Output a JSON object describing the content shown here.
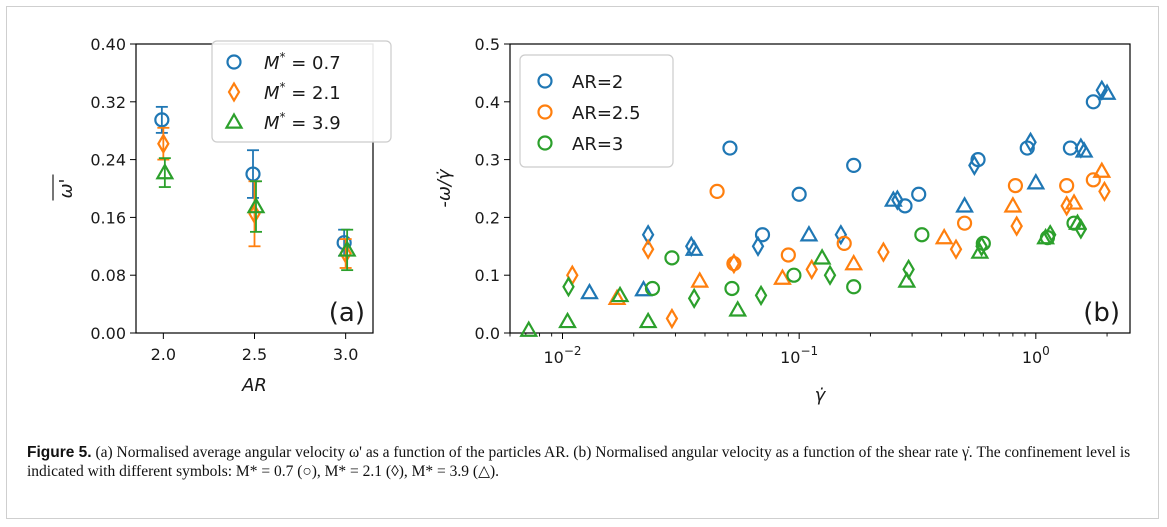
{
  "chart_data": [
    {
      "type": "scatter",
      "panel": "(a)",
      "xlabel": "AR",
      "ylabel": "ω'",
      "xlim": [
        1.85,
        3.15
      ],
      "ylim": [
        0.0,
        0.4
      ],
      "xticks": [
        "2.0",
        "2.5",
        "3.0"
      ],
      "yticks": [
        "0.00",
        "0.08",
        "0.16",
        "0.24",
        "0.32",
        "0.40"
      ],
      "legend_position": "top-right",
      "series": [
        {
          "name": "M* = 0.7",
          "marker": "circle",
          "color": "#1f77b4",
          "x": [
            2.0,
            2.5,
            3.0
          ],
          "y": [
            0.295,
            0.22,
            0.125
          ],
          "err": [
            0.018,
            0.033,
            0.018
          ]
        },
        {
          "name": "M* = 2.1",
          "marker": "diamond",
          "color": "#ff7f0e",
          "x": [
            2.0,
            2.5,
            3.0
          ],
          "y": [
            0.262,
            0.165,
            0.11
          ],
          "err": [
            0.022,
            0.045,
            0.02
          ]
        },
        {
          "name": "M* = 3.9",
          "marker": "triangle",
          "color": "#2ca02c",
          "x": [
            2.0,
            2.5,
            3.0
          ],
          "y": [
            0.222,
            0.175,
            0.115
          ],
          "err": [
            0.02,
            0.035,
            0.028
          ]
        }
      ]
    },
    {
      "type": "scatter",
      "panel": "(b)",
      "xlabel": "γ̇",
      "ylabel": "-ω/γ̇",
      "xscale": "log",
      "xlim": [
        0.006,
        2.5
      ],
      "ylim": [
        0.0,
        0.5
      ],
      "xticks": [
        0.01,
        0.1,
        1
      ],
      "yticks": [
        "0.0",
        "0.1",
        "0.2",
        "0.3",
        "0.4",
        "0.5"
      ],
      "legend_position": "top-left",
      "legend": [
        {
          "name": "AR=2",
          "color": "#1f77b4"
        },
        {
          "name": "AR=2.5",
          "color": "#ff7f0e"
        },
        {
          "name": "AR=3",
          "color": "#2ca02c"
        }
      ],
      "series": [
        {
          "ar": "2",
          "marker": "circle",
          "color": "#1f77b4",
          "points": [
            [
              0.051,
              0.32
            ],
            [
              0.07,
              0.17
            ],
            [
              0.1,
              0.24
            ],
            [
              0.17,
              0.29
            ],
            [
              0.28,
              0.22
            ],
            [
              0.32,
              0.24
            ],
            [
              0.57,
              0.3
            ],
            [
              0.92,
              0.32
            ],
            [
              1.4,
              0.32
            ],
            [
              1.75,
              0.4
            ]
          ]
        },
        {
          "ar": "2",
          "marker": "diamond",
          "color": "#1f77b4",
          "points": [
            [
              0.023,
              0.17
            ],
            [
              0.035,
              0.15
            ],
            [
              0.067,
              0.15
            ],
            [
              0.15,
              0.17
            ],
            [
              0.26,
              0.23
            ],
            [
              0.55,
              0.29
            ],
            [
              0.95,
              0.33
            ],
            [
              1.55,
              0.32
            ],
            [
              1.9,
              0.42
            ]
          ]
        },
        {
          "ar": "2",
          "marker": "triangle",
          "color": "#1f77b4",
          "points": [
            [
              0.013,
              0.07
            ],
            [
              0.022,
              0.075
            ],
            [
              0.036,
              0.145
            ],
            [
              0.11,
              0.17
            ],
            [
              0.25,
              0.23
            ],
            [
              0.5,
              0.22
            ],
            [
              1.0,
              0.26
            ],
            [
              1.6,
              0.315
            ],
            [
              2.0,
              0.415
            ]
          ]
        },
        {
          "ar": "2.5",
          "marker": "circle",
          "color": "#ff7f0e",
          "points": [
            [
              0.045,
              0.245
            ],
            [
              0.053,
              0.12
            ],
            [
              0.09,
              0.135
            ],
            [
              0.155,
              0.155
            ],
            [
              0.5,
              0.19
            ],
            [
              0.82,
              0.255
            ],
            [
              1.35,
              0.255
            ],
            [
              1.75,
              0.265
            ]
          ]
        },
        {
          "ar": "2.5",
          "marker": "diamond",
          "color": "#ff7f0e",
          "points": [
            [
              0.011,
              0.1
            ],
            [
              0.023,
              0.145
            ],
            [
              0.029,
              0.025
            ],
            [
              0.053,
              0.12
            ],
            [
              0.113,
              0.11
            ],
            [
              0.227,
              0.14
            ],
            [
              0.46,
              0.145
            ],
            [
              0.83,
              0.185
            ],
            [
              1.35,
              0.22
            ],
            [
              1.95,
              0.245
            ]
          ]
        },
        {
          "ar": "2.5",
          "marker": "triangle",
          "color": "#ff7f0e",
          "points": [
            [
              0.017,
              0.06
            ],
            [
              0.038,
              0.09
            ],
            [
              0.085,
              0.095
            ],
            [
              0.17,
              0.12
            ],
            [
              0.41,
              0.165
            ],
            [
              0.8,
              0.22
            ],
            [
              1.45,
              0.225
            ],
            [
              1.9,
              0.28
            ]
          ]
        },
        {
          "ar": "3",
          "marker": "circle",
          "color": "#2ca02c",
          "points": [
            [
              0.024,
              0.077
            ],
            [
              0.029,
              0.13
            ],
            [
              0.052,
              0.077
            ],
            [
              0.095,
              0.1
            ],
            [
              0.17,
              0.08
            ],
            [
              0.33,
              0.17
            ],
            [
              0.6,
              0.155
            ],
            [
              1.12,
              0.165
            ],
            [
              1.45,
              0.19
            ]
          ]
        },
        {
          "ar": "3",
          "marker": "diamond",
          "color": "#2ca02c",
          "points": [
            [
              0.0106,
              0.08
            ],
            [
              0.036,
              0.06
            ],
            [
              0.069,
              0.065
            ],
            [
              0.135,
              0.1
            ],
            [
              0.29,
              0.11
            ],
            [
              0.59,
              0.15
            ],
            [
              1.15,
              0.17
            ],
            [
              1.55,
              0.18
            ]
          ]
        },
        {
          "ar": "3",
          "marker": "triangle",
          "color": "#2ca02c",
          "points": [
            [
              0.0072,
              0.005
            ],
            [
              0.0105,
              0.02
            ],
            [
              0.0175,
              0.065
            ],
            [
              0.023,
              0.02
            ],
            [
              0.055,
              0.04
            ],
            [
              0.125,
              0.13
            ],
            [
              0.285,
              0.09
            ],
            [
              0.58,
              0.14
            ],
            [
              1.1,
              0.165
            ],
            [
              1.5,
              0.19
            ]
          ]
        }
      ]
    }
  ],
  "legend_a": [
    {
      "pre": "M",
      "sup": "*",
      "post": " = 0.7"
    },
    {
      "pre": "M",
      "sup": "*",
      "post": " = 2.1"
    },
    {
      "pre": "M",
      "sup": "*",
      "post": " = 3.9"
    }
  ],
  "caption": {
    "label": "Figure 5.",
    "text": "(a) Normalised average angular velocity ω' as a function of the particles AR. (b) Normalised angular velocity as a function of the shear rate γ̇. The confinement level is indicated with different symbols: M* = 0.7 (○), M* = 2.1 (◊), M* = 3.9 (△)."
  }
}
